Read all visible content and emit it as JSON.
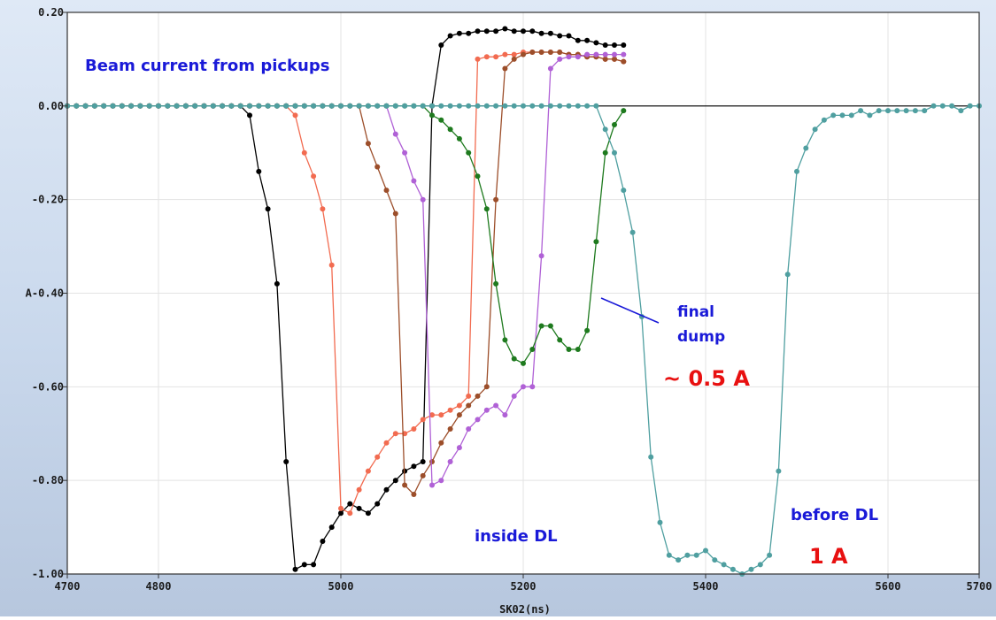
{
  "chart_data": {
    "type": "line",
    "title": "",
    "xlabel": "SK02(ns)",
    "ylabel": "A",
    "xlim": [
      4700,
      5700
    ],
    "ylim": [
      -1.0,
      0.2
    ],
    "xticks": [
      4700,
      4800,
      5000,
      5200,
      5400,
      5600,
      5700
    ],
    "xtick_labels": [
      "4700",
      "4800",
      "5000",
      "5200",
      "5400",
      "5600",
      "5700"
    ],
    "yticks": [
      0.2,
      0.0,
      -0.2,
      -0.4,
      -0.6,
      -0.8,
      -1.0
    ],
    "ytick_labels": [
      "0.20",
      "0.00",
      "-0.20",
      "-0.40",
      "-0.60",
      "-0.80",
      "-1.00"
    ],
    "ylabel_tick": "A-0.40",
    "grid": true,
    "series": [
      {
        "color": "#000000",
        "x": [
          4700,
          4710,
          4720,
          4730,
          4740,
          4750,
          4760,
          4770,
          4780,
          4790,
          4800,
          4810,
          4820,
          4830,
          4840,
          4850,
          4860,
          4870,
          4880,
          4890,
          4900,
          4910,
          4920,
          4930,
          4940,
          4950,
          4960,
          4970,
          4980,
          4990,
          5000,
          5010,
          5020,
          5030,
          5040,
          5050,
          5060,
          5070,
          5080,
          5090,
          5100,
          5110,
          5120,
          5130,
          5140,
          5150,
          5160,
          5170,
          5180,
          5190,
          5200,
          5210,
          5220,
          5230,
          5240,
          5250,
          5260,
          5270,
          5280,
          5290,
          5300,
          5310
        ],
        "y": [
          0,
          0,
          0,
          0,
          0,
          0,
          0,
          0,
          0,
          0,
          0,
          0,
          0,
          0,
          0,
          0,
          0,
          0,
          0,
          0,
          -0.02,
          -0.14,
          -0.22,
          -0.38,
          -0.76,
          -0.99,
          -0.98,
          -0.98,
          -0.93,
          -0.9,
          -0.87,
          -0.85,
          -0.86,
          -0.87,
          -0.85,
          -0.82,
          -0.8,
          -0.78,
          -0.77,
          -0.76,
          0.0,
          0.13,
          0.15,
          0.155,
          0.155,
          0.16,
          0.16,
          0.16,
          0.165,
          0.16,
          0.16,
          0.16,
          0.155,
          0.155,
          0.15,
          0.15,
          0.14,
          0.14,
          0.135,
          0.13,
          0.13,
          0.13
        ]
      },
      {
        "color": "#f26b50",
        "x": [
          4700,
          4710,
          4720,
          4730,
          4740,
          4750,
          4760,
          4770,
          4780,
          4790,
          4800,
          4810,
          4820,
          4830,
          4840,
          4850,
          4860,
          4870,
          4880,
          4890,
          4900,
          4910,
          4920,
          4930,
          4940,
          4950,
          4960,
          4970,
          4980,
          4990,
          5000,
          5010,
          5020,
          5030,
          5040,
          5050,
          5060,
          5070,
          5080,
          5090,
          5100,
          5110,
          5120,
          5130,
          5140,
          5150,
          5160,
          5170,
          5180,
          5190,
          5200,
          5210,
          5220,
          5230,
          5240,
          5250,
          5260,
          5270,
          5280,
          5290,
          5300,
          5310
        ],
        "y": [
          0,
          0,
          0,
          0,
          0,
          0,
          0,
          0,
          0,
          0,
          0,
          0,
          0,
          0,
          0,
          0,
          0,
          0,
          0,
          0,
          0,
          0,
          0,
          0,
          0,
          -0.02,
          -0.1,
          -0.15,
          -0.22,
          -0.34,
          -0.86,
          -0.87,
          -0.82,
          -0.78,
          -0.75,
          -0.72,
          -0.7,
          -0.7,
          -0.69,
          -0.67,
          -0.66,
          -0.66,
          -0.65,
          -0.64,
          -0.62,
          0.1,
          0.105,
          0.105,
          0.11,
          0.11,
          0.115,
          0.115,
          0.115,
          0.115,
          0.115,
          0.11,
          0.11,
          0.105,
          0.105,
          0.1,
          0.1,
          0.095
        ]
      },
      {
        "color": "#9c4e2a",
        "x": [
          4700,
          4710,
          4720,
          4730,
          4740,
          4750,
          4760,
          4770,
          4780,
          4790,
          4800,
          4810,
          4820,
          4830,
          4840,
          4850,
          4860,
          4870,
          4880,
          4890,
          4900,
          4910,
          4920,
          4930,
          4940,
          4950,
          4960,
          4970,
          4980,
          4990,
          5000,
          5010,
          5020,
          5030,
          5040,
          5050,
          5060,
          5070,
          5080,
          5090,
          5100,
          5110,
          5120,
          5130,
          5140,
          5150,
          5160,
          5170,
          5180,
          5190,
          5200,
          5210,
          5220,
          5230,
          5240,
          5250,
          5260,
          5270,
          5280,
          5290,
          5300,
          5310
        ],
        "y": [
          0,
          0,
          0,
          0,
          0,
          0,
          0,
          0,
          0,
          0,
          0,
          0,
          0,
          0,
          0,
          0,
          0,
          0,
          0,
          0,
          0,
          0,
          0,
          0,
          0,
          0,
          0,
          0,
          0,
          0,
          0,
          0,
          0,
          -0.08,
          -0.13,
          -0.18,
          -0.23,
          -0.81,
          -0.83,
          -0.79,
          -0.76,
          -0.72,
          -0.69,
          -0.66,
          -0.64,
          -0.62,
          -0.6,
          -0.2,
          0.08,
          0.1,
          0.11,
          0.115,
          0.115,
          0.115,
          0.115,
          0.11,
          0.11,
          0.105,
          0.105,
          0.1,
          0.1,
          0.095
        ]
      },
      {
        "color": "#b061d6",
        "x": [
          4700,
          4710,
          4720,
          4730,
          4740,
          4750,
          4760,
          4770,
          4780,
          4790,
          4800,
          4810,
          4820,
          4830,
          4840,
          4850,
          4860,
          4870,
          4880,
          4890,
          4900,
          4910,
          4920,
          4930,
          4940,
          4950,
          4960,
          4970,
          4980,
          4990,
          5000,
          5010,
          5020,
          5030,
          5040,
          5050,
          5060,
          5070,
          5080,
          5090,
          5100,
          5110,
          5120,
          5130,
          5140,
          5150,
          5160,
          5170,
          5180,
          5190,
          5200,
          5210,
          5220,
          5230,
          5240,
          5250,
          5260,
          5270,
          5280,
          5290,
          5300,
          5310
        ],
        "y": [
          0,
          0,
          0,
          0,
          0,
          0,
          0,
          0,
          0,
          0,
          0,
          0,
          0,
          0,
          0,
          0,
          0,
          0,
          0,
          0,
          0,
          0,
          0,
          0,
          0,
          0,
          0,
          0,
          0,
          0,
          0,
          0,
          0,
          0,
          0,
          0,
          -0.06,
          -0.1,
          -0.16,
          -0.2,
          -0.81,
          -0.8,
          -0.76,
          -0.73,
          -0.69,
          -0.67,
          -0.65,
          -0.64,
          -0.66,
          -0.62,
          -0.6,
          -0.6,
          -0.32,
          0.08,
          0.1,
          0.105,
          0.105,
          0.11,
          0.11,
          0.11,
          0.11,
          0.11
        ]
      },
      {
        "color": "#1e7a1e",
        "x": [
          4700,
          4710,
          4720,
          4730,
          4740,
          4750,
          4760,
          4770,
          4780,
          4790,
          4800,
          4810,
          4820,
          4830,
          4840,
          4850,
          4860,
          4870,
          4880,
          4890,
          4900,
          4910,
          4920,
          4930,
          4940,
          4950,
          4960,
          4970,
          4980,
          4990,
          5000,
          5010,
          5020,
          5030,
          5040,
          5050,
          5060,
          5070,
          5080,
          5090,
          5100,
          5110,
          5120,
          5130,
          5140,
          5150,
          5160,
          5170,
          5180,
          5190,
          5200,
          5210,
          5220,
          5230,
          5240,
          5250,
          5260,
          5270,
          5280,
          5290,
          5300,
          5310
        ],
        "y": [
          0,
          0,
          0,
          0,
          0,
          0,
          0,
          0,
          0,
          0,
          0,
          0,
          0,
          0,
          0,
          0,
          0,
          0,
          0,
          0,
          0,
          0,
          0,
          0,
          0,
          0,
          0,
          0,
          0,
          0,
          0,
          0,
          0,
          0,
          0,
          0,
          0,
          0,
          0,
          0,
          -0.02,
          -0.03,
          -0.05,
          -0.07,
          -0.1,
          -0.15,
          -0.22,
          -0.38,
          -0.5,
          -0.54,
          -0.55,
          -0.52,
          -0.47,
          -0.47,
          -0.5,
          -0.52,
          -0.52,
          -0.48,
          -0.29,
          -0.1,
          -0.04,
          -0.01
        ]
      },
      {
        "color": "#4f9fa0",
        "x": [
          4700,
          4710,
          4720,
          4730,
          4740,
          4750,
          4760,
          4770,
          4780,
          4790,
          4800,
          4810,
          4820,
          4830,
          4840,
          4850,
          4860,
          4870,
          4880,
          4890,
          4900,
          4910,
          4920,
          4930,
          4940,
          4950,
          4960,
          4970,
          4980,
          4990,
          5000,
          5010,
          5020,
          5030,
          5040,
          5050,
          5060,
          5070,
          5080,
          5090,
          5100,
          5110,
          5120,
          5130,
          5140,
          5150,
          5160,
          5170,
          5180,
          5190,
          5200,
          5210,
          5220,
          5230,
          5240,
          5250,
          5260,
          5270,
          5280,
          5290,
          5300,
          5310,
          5320,
          5330,
          5340,
          5350,
          5360,
          5370,
          5380,
          5390,
          5400,
          5410,
          5420,
          5430,
          5440,
          5450,
          5460,
          5470,
          5480,
          5490,
          5500,
          5510,
          5520,
          5530,
          5540,
          5550,
          5560,
          5570,
          5580,
          5590,
          5600,
          5610,
          5620,
          5630,
          5640,
          5650,
          5660,
          5670,
          5680,
          5690,
          5700
        ],
        "y": [
          0,
          0,
          0,
          0,
          0,
          0,
          0,
          0,
          0,
          0,
          0,
          0,
          0,
          0,
          0,
          0,
          0,
          0,
          0,
          0,
          0,
          0,
          0,
          0,
          0,
          0,
          0,
          0,
          0,
          0,
          0,
          0,
          0,
          0,
          0,
          0,
          0,
          0,
          0,
          0,
          0,
          0,
          0,
          0,
          0,
          0,
          0,
          0,
          0,
          0,
          0,
          0,
          0,
          0,
          0,
          0,
          0,
          0,
          0,
          -0.05,
          -0.1,
          -0.18,
          -0.27,
          -0.45,
          -0.75,
          -0.89,
          -0.96,
          -0.97,
          -0.96,
          -0.96,
          -0.95,
          -0.97,
          -0.98,
          -0.99,
          -1.0,
          -0.99,
          -0.98,
          -0.96,
          -0.78,
          -0.36,
          -0.14,
          -0.09,
          -0.05,
          -0.03,
          -0.02,
          -0.02,
          -0.02,
          -0.01,
          -0.02,
          -0.01,
          -0.01,
          -0.01,
          -0.01,
          -0.01,
          -0.01,
          0.0,
          0.0,
          0.0,
          -0.01,
          0.0,
          0.0
        ]
      }
    ],
    "annotations": [
      {
        "text": "Beam current from pickups",
        "color": "#1a1ad8"
      },
      {
        "text": "final",
        "color": "#1a1ad8"
      },
      {
        "text": "dump",
        "color": "#1a1ad8"
      },
      {
        "text": "~ 0.5 A",
        "color": "#e81010"
      },
      {
        "text": "inside DL",
        "color": "#1a1ad8"
      },
      {
        "text": "before DL",
        "color": "#1a1ad8"
      },
      {
        "text": "1 A",
        "color": "#e81010"
      }
    ]
  }
}
